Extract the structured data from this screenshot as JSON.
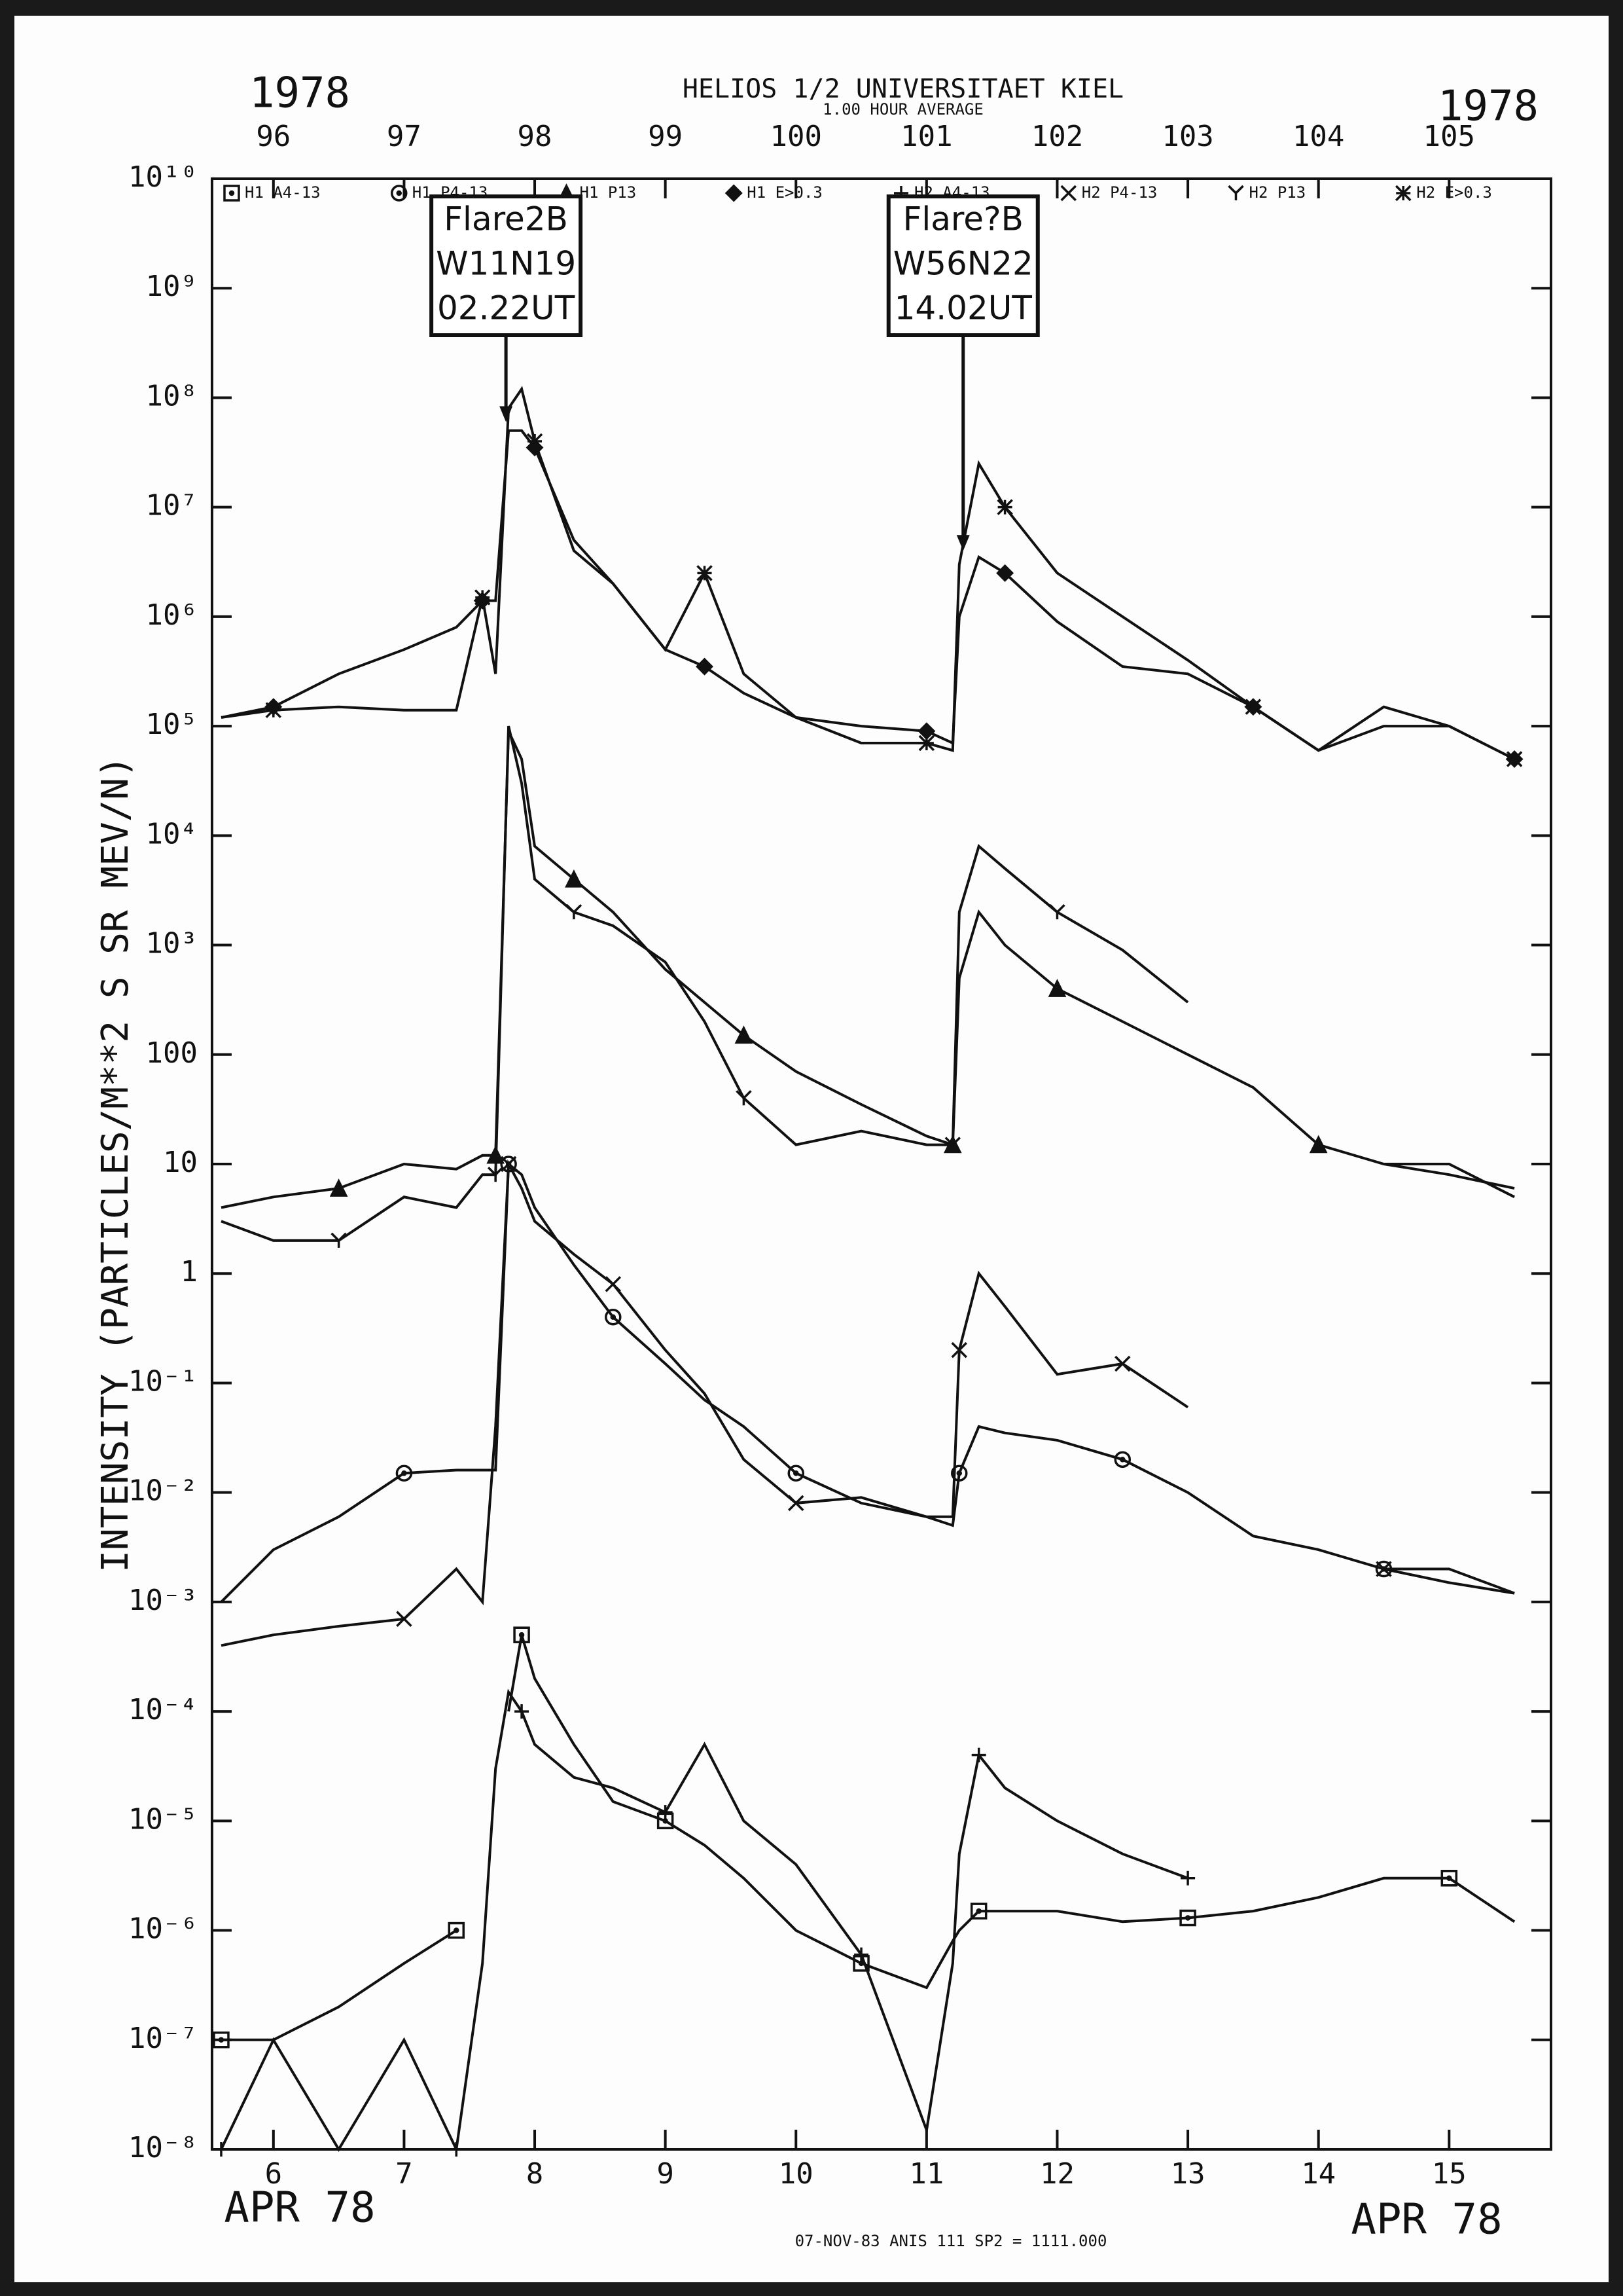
{
  "chart_data": {
    "type": "line",
    "title": "HELIOS 1/2  UNIVERSITAET KIEL",
    "subtitle": "1.00 HOUR AVERAGE",
    "year_left": "1978",
    "year_right": "1978",
    "month_left": "APR 78",
    "month_right": "APR 78",
    "footer": "07-NOV-83 ANIS 111 SP2 = 1111.000",
    "y_label": "INTENSITY (PARTICLES/M**2 S SR MEV/N)",
    "ylog": true,
    "xlim": [
      5.53,
      15.78
    ],
    "xticks": [
      6,
      7,
      8,
      9,
      10,
      11,
      12,
      13,
      14,
      15
    ],
    "x2lim": [
      95.53,
      105.78
    ],
    "x2ticks": [
      96,
      97,
      98,
      99,
      100,
      101,
      102,
      103,
      104,
      105
    ],
    "ylim": [
      1e-08,
      10000000000.0
    ],
    "yticks": [
      {
        "value": 10000000000.0,
        "label": "10¹⁰"
      },
      {
        "value": 1000000000.0,
        "label": "10⁹"
      },
      {
        "value": 100000000.0,
        "label": "10⁸"
      },
      {
        "value": 10000000.0,
        "label": "10⁷"
      },
      {
        "value": 1000000.0,
        "label": "10⁶"
      },
      {
        "value": 100000.0,
        "label": "10⁵"
      },
      {
        "value": 10000.0,
        "label": "10⁴"
      },
      {
        "value": 1000.0,
        "label": "10³"
      },
      100,
      10,
      1,
      {
        "value": 0.1,
        "label": "10⁻¹"
      },
      {
        "value": 0.01,
        "label": "10⁻²"
      },
      {
        "value": 0.001,
        "label": "10⁻³"
      },
      {
        "value": 0.0001,
        "label": "10⁻⁴"
      },
      {
        "value": 1e-05,
        "label": "10⁻⁵"
      },
      {
        "value": 1e-06,
        "label": "10⁻⁶"
      },
      {
        "value": 1e-07,
        "label": "10⁻⁷"
      },
      {
        "value": 1e-08,
        "label": "10⁻⁸"
      }
    ],
    "annotations": [
      {
        "x": 7.78,
        "y": 60000000.0,
        "lines": [
          "Flare2B",
          "W11N19",
          "02.22UT"
        ]
      },
      {
        "x": 11.28,
        "y": 4000000.0,
        "lines": [
          "Flare?B",
          "W56N22",
          "14.02UT"
        ]
      }
    ],
    "x": [
      5.6,
      6.0,
      6.5,
      7.0,
      7.4,
      7.6,
      7.7,
      7.8,
      7.9,
      8.0,
      8.3,
      8.6,
      9.0,
      9.3,
      9.6,
      10.0,
      10.5,
      11.0,
      11.2,
      11.25,
      11.4,
      11.6,
      12.0,
      12.5,
      13.0,
      13.5,
      14.0,
      14.5,
      15.0,
      15.5
    ],
    "series": [
      {
        "name": "H1 A4-13",
        "symbol": "⊡",
        "marker": "square-dot",
        "color": "#111111",
        "values": [
          1e-07,
          1e-07,
          2e-07,
          5e-07,
          1e-06,
          null,
          null,
          0.0001,
          0.0005,
          0.0002,
          5e-05,
          1.5e-05,
          1e-05,
          6e-06,
          3e-06,
          1e-06,
          5e-07,
          3e-07,
          8e-07,
          1e-06,
          1.5e-06,
          1.5e-06,
          1.5e-06,
          1.2e-06,
          1.3e-06,
          1.5e-06,
          2e-06,
          3e-06,
          3e-06,
          1.2e-06
        ]
      },
      {
        "name": "H1 P4-13",
        "symbol": "⊙",
        "marker": "circle-dot",
        "color": "#111111",
        "values": [
          0.001,
          0.003,
          0.006,
          0.015,
          0.016,
          0.016,
          0.016,
          10,
          8,
          4,
          1.2,
          0.4,
          0.15,
          0.07,
          0.04,
          0.015,
          0.008,
          0.006,
          0.005,
          0.015,
          0.04,
          0.035,
          0.03,
          0.02,
          0.01,
          0.004,
          0.003,
          0.002,
          0.0015,
          0.0012
        ]
      },
      {
        "name": "H1 P13",
        "symbol": "▲",
        "marker": "triangle",
        "color": "#111111",
        "values": [
          4,
          5,
          6,
          10,
          9,
          12,
          12,
          90000,
          50000,
          8000,
          4000,
          2000,
          600,
          300,
          150,
          70,
          35,
          18,
          15,
          500,
          2000,
          1000,
          400,
          200,
          100,
          50,
          15,
          10,
          8,
          6
        ]
      },
      {
        "name": "H1 E>0.3",
        "symbol": "◆",
        "marker": "diamond",
        "color": "#111111",
        "values": [
          120000,
          150000,
          300000,
          500000,
          800000,
          1400000,
          1400000,
          50000000.0,
          50000000.0,
          35000000.0,
          5000000,
          2000000,
          500000,
          350000,
          200000,
          120000,
          100000,
          90000,
          70000,
          1000000,
          3500000,
          2500000,
          900000,
          350000,
          300000,
          150000,
          60000,
          100000,
          100000,
          50000
        ]
      },
      {
        "name": "H2 A4-13",
        "symbol": "+",
        "marker": "plus",
        "color": "#111111",
        "values": [
          1e-08,
          1e-07,
          1e-08,
          1e-07,
          1e-08,
          5e-07,
          3e-05,
          0.00015,
          0.0001,
          5e-05,
          2.5e-05,
          2e-05,
          1.2e-05,
          5e-05,
          1e-05,
          4e-06,
          6e-07,
          1.5e-08,
          5e-07,
          5e-06,
          4e-05,
          2e-05,
          1e-05,
          5e-06,
          3e-06,
          null,
          null,
          null,
          null,
          null
        ]
      },
      {
        "name": "H2 P4-13",
        "symbol": "×",
        "marker": "cross",
        "color": "#111111",
        "values": [
          0.0004,
          0.0005,
          0.0006,
          0.0007,
          0.002,
          0.001,
          0.04,
          10,
          6,
          3,
          1.5,
          0.8,
          0.2,
          0.08,
          0.02,
          0.008,
          0.009,
          0.006,
          0.006,
          0.2,
          1,
          0.5,
          0.12,
          0.15,
          0.06,
          null,
          null,
          0.002,
          0.002,
          0.0012
        ]
      },
      {
        "name": "H2 P13",
        "symbol": "Y",
        "marker": "y",
        "color": "#111111",
        "values": [
          3,
          2,
          2,
          5,
          4,
          8,
          8,
          100000,
          30000,
          4000,
          2000,
          1500,
          700,
          200,
          40,
          15,
          20,
          15,
          15,
          2000,
          8000,
          5000,
          2000,
          900,
          300,
          null,
          null,
          10,
          10,
          5
        ]
      },
      {
        "name": "H2 E>0.3",
        "symbol": "✱",
        "marker": "asterisk",
        "color": "#111111",
        "values": [
          120000,
          140000,
          150000,
          140000,
          140000,
          1500000,
          300000,
          80000000.0,
          120000000.0,
          40000000.0,
          4000000,
          2000000,
          500000,
          2500000,
          300000,
          120000,
          70000,
          70000,
          60000,
          3000000,
          25000000.0,
          10000000.0,
          2500000,
          1000000,
          400000,
          150000,
          60000,
          150000,
          100000,
          50000
        ]
      }
    ]
  }
}
